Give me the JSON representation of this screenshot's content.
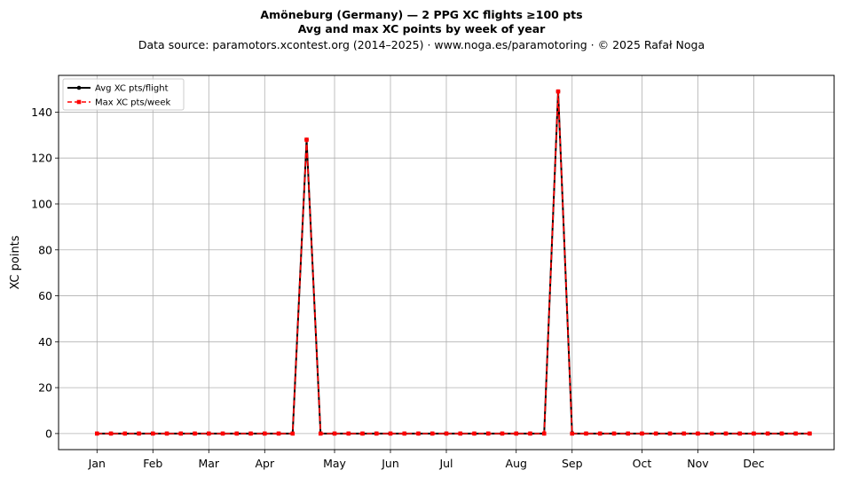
{
  "title_line1": "Amöneburg (Germany)  —  2 PPG XC flights ≥100 pts",
  "title_line2": "Avg and max XC points by week of year",
  "subtitle": "Data source: paramotors.xcontest.org (2014–2025)  ·  www.noga.es/paramotoring  ·  © 2025 Rafał Noga",
  "chart_data": {
    "type": "line",
    "ylabel": "XC points",
    "xlabel": "",
    "ylim": [
      -7,
      156
    ],
    "xlim": [
      -1.75,
      53.75
    ],
    "yticks": [
      0,
      20,
      40,
      60,
      80,
      100,
      120,
      140
    ],
    "xticks": [
      {
        "label": "Jan",
        "week": 1
      },
      {
        "label": "Feb",
        "week": 5
      },
      {
        "label": "Mar",
        "week": 9
      },
      {
        "label": "Apr",
        "week": 13
      },
      {
        "label": "May",
        "week": 18
      },
      {
        "label": "Jun",
        "week": 22
      },
      {
        "label": "Jul",
        "week": 26
      },
      {
        "label": "Aug",
        "week": 31
      },
      {
        "label": "Sep",
        "week": 35
      },
      {
        "label": "Oct",
        "week": 40
      },
      {
        "label": "Nov",
        "week": 44
      },
      {
        "label": "Dec",
        "week": 48
      }
    ],
    "grid": true,
    "legend_position": "top-left",
    "x": [
      1,
      2,
      3,
      4,
      5,
      6,
      7,
      8,
      9,
      10,
      11,
      12,
      13,
      14,
      15,
      16,
      17,
      18,
      19,
      20,
      21,
      22,
      23,
      24,
      25,
      26,
      27,
      28,
      29,
      30,
      31,
      32,
      33,
      34,
      35,
      36,
      37,
      38,
      39,
      40,
      41,
      42,
      43,
      44,
      45,
      46,
      47,
      48,
      49,
      50,
      51,
      52
    ],
    "series": [
      {
        "name": "Avg XC pts/flight",
        "color": "#000000",
        "marker": "circle",
        "linestyle": "solid",
        "values": [
          0,
          0,
          0,
          0,
          0,
          0,
          0,
          0,
          0,
          0,
          0,
          0,
          0,
          0,
          0,
          128,
          0,
          0,
          0,
          0,
          0,
          0,
          0,
          0,
          0,
          0,
          0,
          0,
          0,
          0,
          0,
          0,
          0,
          149,
          0,
          0,
          0,
          0,
          0,
          0,
          0,
          0,
          0,
          0,
          0,
          0,
          0,
          0,
          0,
          0,
          0,
          0
        ]
      },
      {
        "name": "Max XC pts/week",
        "color": "#ff0000",
        "marker": "square",
        "linestyle": "dashed",
        "values": [
          0,
          0,
          0,
          0,
          0,
          0,
          0,
          0,
          0,
          0,
          0,
          0,
          0,
          0,
          0,
          128,
          0,
          0,
          0,
          0,
          0,
          0,
          0,
          0,
          0,
          0,
          0,
          0,
          0,
          0,
          0,
          0,
          0,
          149,
          0,
          0,
          0,
          0,
          0,
          0,
          0,
          0,
          0,
          0,
          0,
          0,
          0,
          0,
          0,
          0,
          0,
          0
        ]
      }
    ]
  }
}
